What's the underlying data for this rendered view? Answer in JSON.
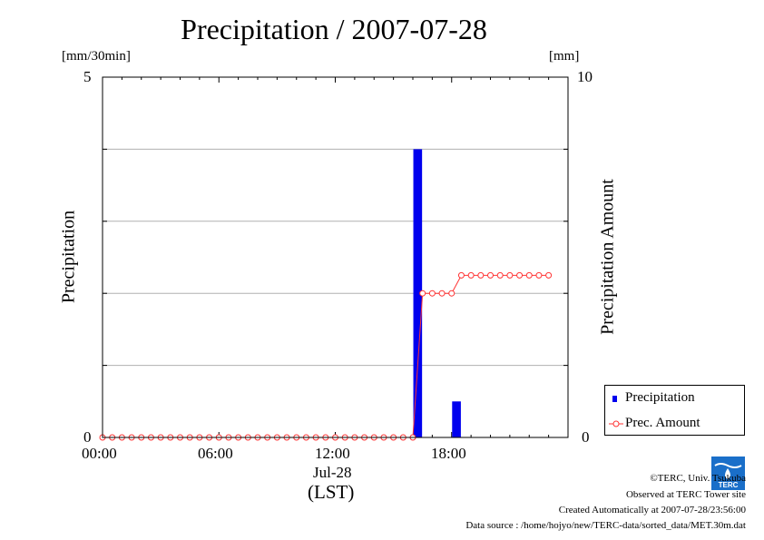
{
  "title": "Precipitation / 2007-07-28",
  "left_unit": "[mm/30min]",
  "right_unit": "[mm]",
  "y_left": {
    "label": "Precipitation",
    "ticks": [
      "5",
      "0"
    ]
  },
  "y_right": {
    "label": "Precipitation Amount",
    "ticks": [
      "10",
      "0"
    ]
  },
  "x_axis": {
    "ticks": [
      "00:00",
      "06:00",
      "12:00",
      "18:00"
    ],
    "date_label": "Jul-28",
    "tz_label": "(LST)"
  },
  "legend": {
    "precip_label": "Precipitation",
    "amount_label": "Prec. Amount"
  },
  "credits": {
    "copyright": "©TERC, Univ. Tsukuba",
    "observed": "Observed at TERC Tower site",
    "created": "Created Automatically at 2007-07-28/23:56:00",
    "source": "Data source : /home/hojyo/new/TERC-data/sorted_data/MET.30m.dat"
  },
  "logo_text": "TERC",
  "colors": {
    "bar": "#0000ee",
    "line": "#ff3333",
    "grid": "#b0b0b0"
  },
  "chart_data": {
    "type": "bar",
    "title": "Precipitation / 2007-07-28",
    "x_unit": "hours (LST), 30-min intervals",
    "x_range": [
      0,
      24
    ],
    "grid": true,
    "legend_position": "bottom-right",
    "series": [
      {
        "name": "Precipitation",
        "axis": "left",
        "unit": "[mm/30min]",
        "ylim": [
          0,
          5
        ],
        "points": [
          {
            "x": 16.0,
            "y": 4.0
          },
          {
            "x": 18.0,
            "y": 0.5
          }
        ]
      },
      {
        "name": "Prec. Amount",
        "axis": "right",
        "unit": "[mm]",
        "ylim": [
          0,
          10
        ],
        "x": [
          0,
          0.5,
          1,
          1.5,
          2,
          2.5,
          3,
          3.5,
          4,
          4.5,
          5,
          5.5,
          6,
          6.5,
          7,
          7.5,
          8,
          8.5,
          9,
          9.5,
          10,
          10.5,
          11,
          11.5,
          12,
          12.5,
          13,
          13.5,
          14,
          14.5,
          15,
          15.5,
          16,
          16.5,
          17,
          17.5,
          18,
          18.5,
          19,
          19.5,
          20,
          20.5,
          21,
          21.5,
          22,
          22.5,
          23
        ],
        "values": [
          0,
          0,
          0,
          0,
          0,
          0,
          0,
          0,
          0,
          0,
          0,
          0,
          0,
          0,
          0,
          0,
          0,
          0,
          0,
          0,
          0,
          0,
          0,
          0,
          0,
          0,
          0,
          0,
          0,
          0,
          0,
          0,
          0,
          4,
          4,
          4,
          4,
          4.5,
          4.5,
          4.5,
          4.5,
          4.5,
          4.5,
          4.5,
          4.5,
          4.5,
          4.5
        ]
      }
    ]
  }
}
